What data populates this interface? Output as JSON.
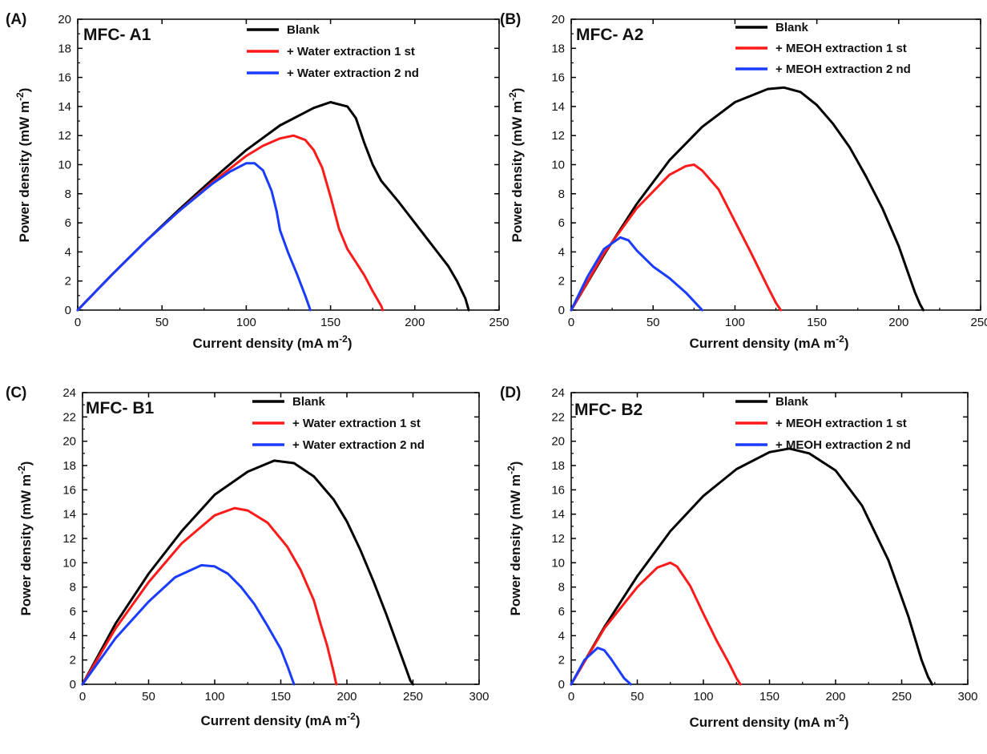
{
  "colors": {
    "series1": "#000000",
    "series2": "#ff1a1a",
    "series3": "#1a3cff"
  },
  "chart_data": [
    {
      "type": "line",
      "panel_label": "(A)",
      "title": "MFC- A1",
      "xlabel": "Current density (mA m",
      "xlabel_sup": "-2",
      "xlabel_end": ")",
      "ylabel": "Power density (mW m",
      "ylabel_sup": "-2",
      "ylabel_end": ")",
      "xlim": [
        0,
        250
      ],
      "ylim": [
        0,
        20
      ],
      "xticks": [
        0,
        50,
        100,
        150,
        200,
        250
      ],
      "yticks": [
        0,
        2,
        4,
        6,
        8,
        10,
        12,
        14,
        16,
        18,
        20
      ],
      "legend_position": "top-right",
      "series": [
        {
          "name": "Blank",
          "color": "#000000",
          "x": [
            0,
            20,
            40,
            60,
            80,
            100,
            120,
            140,
            150,
            160,
            165,
            170,
            175,
            180,
            190,
            200,
            210,
            220,
            225,
            230,
            232
          ],
          "y": [
            0,
            2.4,
            4.7,
            6.9,
            9.0,
            11.0,
            12.7,
            13.9,
            14.3,
            14.0,
            13.2,
            11.5,
            10.0,
            8.9,
            7.5,
            6.0,
            4.5,
            3.0,
            2.0,
            0.8,
            0
          ]
        },
        {
          "name": "+ Water extraction 1 st",
          "color": "#ff1a1a",
          "x": [
            0,
            20,
            40,
            60,
            80,
            100,
            110,
            120,
            128,
            135,
            140,
            145,
            150,
            155,
            160,
            165,
            170,
            175,
            180,
            181
          ],
          "y": [
            0,
            2.4,
            4.7,
            6.8,
            8.8,
            10.6,
            11.3,
            11.8,
            12.0,
            11.7,
            11.0,
            9.8,
            7.8,
            5.6,
            4.2,
            3.3,
            2.4,
            1.3,
            0.3,
            0
          ]
        },
        {
          "name": "+ Water extraction 2 nd",
          "color": "#1a3cff",
          "x": [
            0,
            20,
            40,
            60,
            80,
            90,
            100,
            105,
            110,
            115,
            118,
            120,
            125,
            130,
            135,
            138
          ],
          "y": [
            0,
            2.4,
            4.7,
            6.8,
            8.7,
            9.5,
            10.1,
            10.1,
            9.6,
            8.2,
            6.8,
            5.5,
            3.9,
            2.5,
            1.0,
            0
          ]
        }
      ]
    },
    {
      "type": "line",
      "panel_label": "(B)",
      "title": "MFC- A2",
      "xlabel": "Current density (mA m",
      "xlabel_sup": "-2",
      "xlabel_end": ")",
      "ylabel": "Power density (mW m",
      "ylabel_sup": "-2",
      "ylabel_end": ")",
      "xlim": [
        0,
        250
      ],
      "ylim": [
        0,
        20
      ],
      "xticks": [
        0,
        50,
        100,
        150,
        200,
        250
      ],
      "yticks": [
        0,
        2,
        4,
        6,
        8,
        10,
        12,
        14,
        16,
        18,
        20
      ],
      "legend_position": "top-right",
      "series": [
        {
          "name": "Blank",
          "color": "#000000",
          "x": [
            0,
            20,
            40,
            60,
            80,
            100,
            120,
            130,
            140,
            150,
            160,
            170,
            180,
            190,
            200,
            205,
            210,
            213,
            215
          ],
          "y": [
            0,
            3.8,
            7.3,
            10.3,
            12.6,
            14.3,
            15.2,
            15.3,
            15.0,
            14.1,
            12.8,
            11.2,
            9.2,
            7.0,
            4.4,
            2.8,
            1.2,
            0.4,
            0
          ]
        },
        {
          "name": "+ MEOH extraction 1 st",
          "color": "#ff1a1a",
          "x": [
            0,
            20,
            40,
            60,
            70,
            75,
            80,
            90,
            100,
            110,
            120,
            125,
            128
          ],
          "y": [
            0,
            3.9,
            7.0,
            9.3,
            9.9,
            10.0,
            9.6,
            8.3,
            6.1,
            3.9,
            1.6,
            0.5,
            0
          ]
        },
        {
          "name": "+ MEOH extraction 2 nd",
          "color": "#1a3cff",
          "x": [
            0,
            10,
            20,
            30,
            35,
            40,
            50,
            60,
            70,
            80
          ],
          "y": [
            0,
            2.3,
            4.2,
            5.0,
            4.8,
            4.1,
            3.0,
            2.2,
            1.2,
            0
          ]
        }
      ]
    },
    {
      "type": "line",
      "panel_label": "(C)",
      "title": "MFC- B1",
      "xlabel": "Current density (mA m",
      "xlabel_sup": "-2",
      "xlabel_end": ")",
      "ylabel": "Power density (mW m",
      "ylabel_sup": "-2",
      "ylabel_end": ")",
      "xlim": [
        0,
        300
      ],
      "ylim": [
        0,
        24
      ],
      "xticks": [
        0,
        50,
        100,
        150,
        200,
        250,
        300
      ],
      "yticks": [
        0,
        2,
        4,
        6,
        8,
        10,
        12,
        14,
        16,
        18,
        20,
        22,
        24
      ],
      "legend_position": "top-right",
      "series": [
        {
          "name": "Blank",
          "color": "#000000",
          "x": [
            0,
            25,
            50,
            75,
            100,
            125,
            145,
            160,
            175,
            190,
            200,
            210,
            220,
            230,
            240,
            245,
            248,
            250
          ],
          "y": [
            0,
            5.0,
            9.1,
            12.6,
            15.6,
            17.5,
            18.4,
            18.2,
            17.1,
            15.2,
            13.4,
            11.1,
            8.5,
            5.7,
            2.7,
            1.2,
            0.3,
            0
          ]
        },
        {
          "name": "+ Water extraction 1 st",
          "color": "#ff1a1a",
          "x": [
            0,
            25,
            50,
            75,
            100,
            115,
            125,
            140,
            155,
            165,
            175,
            180,
            185,
            190,
            192
          ],
          "y": [
            0,
            4.6,
            8.4,
            11.6,
            13.9,
            14.5,
            14.3,
            13.3,
            11.3,
            9.4,
            6.9,
            5.0,
            3.2,
            1.0,
            0
          ]
        },
        {
          "name": "+ Water extraction 2 nd",
          "color": "#1a3cff",
          "x": [
            0,
            25,
            50,
            70,
            90,
            100,
            110,
            120,
            130,
            140,
            150,
            155,
            160
          ],
          "y": [
            0,
            3.8,
            6.8,
            8.8,
            9.8,
            9.7,
            9.1,
            8.0,
            6.6,
            4.8,
            2.9,
            1.5,
            0
          ]
        }
      ]
    },
    {
      "type": "line",
      "panel_label": "(D)",
      "title": "MFC- B2",
      "xlabel": "Current density (mA m",
      "xlabel_sup": "-2",
      "xlabel_end": ")",
      "ylabel": "Power density (mW m",
      "ylabel_sup": "-2",
      "ylabel_end": ")",
      "xlim": [
        0,
        300
      ],
      "ylim": [
        0,
        24
      ],
      "xticks": [
        0,
        50,
        100,
        150,
        200,
        250,
        300
      ],
      "yticks": [
        0,
        2,
        4,
        6,
        8,
        10,
        12,
        14,
        16,
        18,
        20,
        22,
        24
      ],
      "legend_position": "top-right",
      "series": [
        {
          "name": "Blank",
          "color": "#000000",
          "x": [
            0,
            25,
            50,
            75,
            100,
            125,
            150,
            165,
            180,
            200,
            220,
            240,
            255,
            265,
            270,
            273
          ],
          "y": [
            0,
            4.7,
            8.9,
            12.6,
            15.5,
            17.7,
            19.1,
            19.4,
            19.0,
            17.6,
            14.7,
            10.2,
            5.6,
            2.0,
            0.6,
            0
          ]
        },
        {
          "name": "+ MEOH extraction 1 st",
          "color": "#ff1a1a",
          "x": [
            0,
            25,
            50,
            65,
            75,
            80,
            90,
            100,
            110,
            120,
            125,
            128
          ],
          "y": [
            0,
            4.6,
            8.0,
            9.6,
            10.0,
            9.7,
            8.1,
            5.8,
            3.6,
            1.6,
            0.5,
            0
          ]
        },
        {
          "name": "+ MEOH extraction 2 nd",
          "color": "#1a3cff",
          "x": [
            0,
            10,
            20,
            25,
            30,
            35,
            40,
            45
          ],
          "y": [
            0,
            2.0,
            3.0,
            2.8,
            2.1,
            1.3,
            0.5,
            0
          ]
        }
      ]
    }
  ]
}
